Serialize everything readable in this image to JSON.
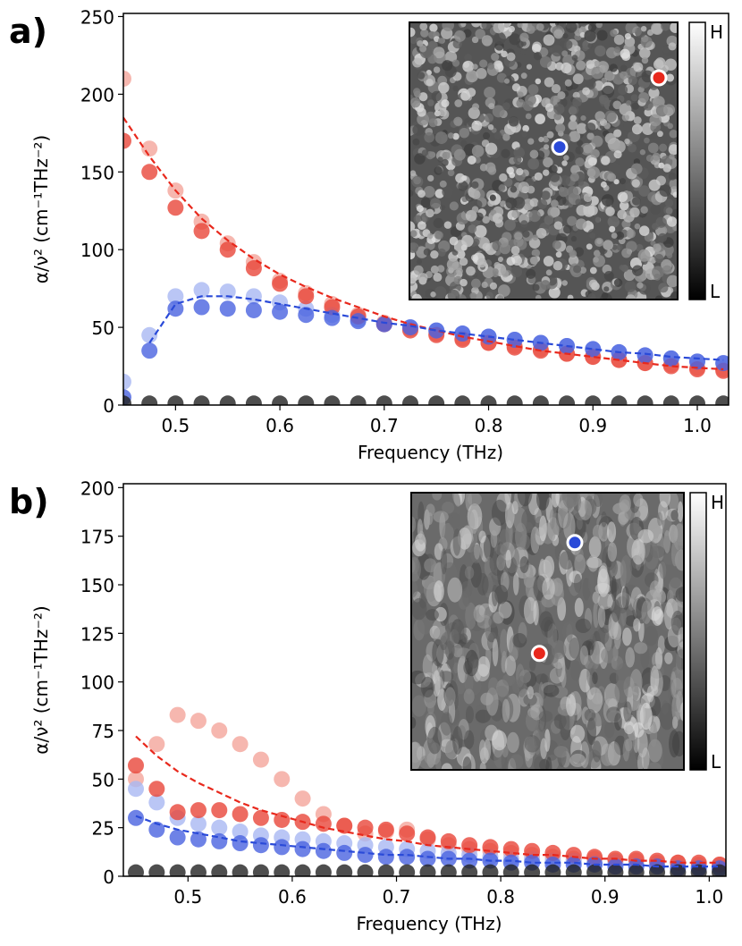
{
  "chart_data": [
    {
      "type": "line",
      "panel_label": "a)",
      "xlabel": "Frequency (THz)",
      "ylabel": "α/ν² (cm⁻¹THz⁻²)",
      "inset_colorbar_labels": [
        "H",
        "L"
      ],
      "xlim": [
        0.45,
        1.03
      ],
      "ylim": [
        0,
        252
      ],
      "xticks": [
        0.5,
        0.6,
        0.7,
        0.8,
        0.9,
        {
          "value": 1,
          "label": "1.0"
        }
      ],
      "yticks": [
        0,
        50,
        100,
        150,
        200,
        250
      ],
      "x": [
        0.45,
        0.475,
        0.5,
        0.525,
        0.55,
        0.575,
        0.6,
        0.625,
        0.65,
        0.675,
        0.7,
        0.725,
        0.75,
        0.775,
        0.8,
        0.825,
        0.85,
        0.875,
        0.9,
        0.925,
        0.95,
        0.975,
        1.0,
        1.025
      ],
      "series": [
        {
          "color": "#f4a59b",
          "style": "markers",
          "values": [
            210,
            165,
            138,
            118,
            104,
            92,
            80,
            72,
            65,
            58,
            53,
            49,
            46,
            43,
            40,
            38,
            36,
            33,
            31,
            29,
            27,
            26,
            24,
            23
          ]
        },
        {
          "color": "#a9b8f2",
          "style": "markers",
          "values": [
            15,
            45,
            70,
            74,
            73,
            70,
            66,
            62,
            58,
            55,
            52,
            50,
            48,
            46,
            44,
            42,
            40,
            38,
            36,
            34,
            32,
            30,
            28,
            27
          ]
        },
        {
          "color": "#e8463a",
          "style": "markers",
          "values": [
            170,
            150,
            127,
            112,
            100,
            88,
            78,
            70,
            63,
            57,
            52,
            48,
            45,
            42,
            40,
            37,
            35,
            33,
            31,
            29,
            27,
            25,
            23,
            22
          ]
        },
        {
          "color": "#4a63e0",
          "style": "markers",
          "values": [
            5,
            35,
            62,
            63,
            62,
            61,
            60,
            58,
            56,
            54,
            52,
            50,
            48,
            46,
            44,
            42,
            40,
            38,
            36,
            34,
            32,
            30,
            28,
            27
          ]
        },
        {
          "color": "#222222",
          "style": "markers",
          "values": [
            1,
            1,
            1,
            1,
            1,
            1,
            1,
            1,
            1,
            1,
            1,
            1,
            1,
            1,
            1,
            1,
            1,
            1,
            1,
            1,
            1,
            1,
            1,
            1
          ]
        },
        {
          "color": "#e8281c",
          "style": "dashed",
          "values": [
            185,
            160,
            138,
            120,
            106,
            94,
            84,
            76,
            69,
            63,
            57,
            52,
            48,
            44,
            41,
            38,
            35,
            33,
            31,
            29,
            27,
            25,
            24,
            23
          ]
        },
        {
          "color": "#2a4ad8",
          "style": "dashed",
          "values": [
            null,
            40,
            65,
            70,
            70,
            68,
            65,
            62,
            59,
            56,
            53,
            51,
            48,
            46,
            44,
            42,
            40,
            38,
            36,
            34,
            33,
            31,
            30,
            29
          ]
        }
      ]
    },
    {
      "type": "line",
      "panel_label": "b)",
      "xlabel": "Frequency (THz)",
      "ylabel": "α/ν² (cm⁻¹THz⁻²)",
      "inset_colorbar_labels": [
        "H",
        "L"
      ],
      "xlim": [
        0.438,
        1.016
      ],
      "ylim": [
        0,
        202
      ],
      "xticks": [
        0.5,
        0.6,
        0.7,
        0.8,
        0.9,
        {
          "value": 1,
          "label": "1.0"
        }
      ],
      "yticks": [
        0,
        25,
        50,
        75,
        100,
        125,
        150,
        175,
        200
      ],
      "x": [
        0.45,
        0.47,
        0.49,
        0.51,
        0.53,
        0.55,
        0.57,
        0.59,
        0.61,
        0.63,
        0.65,
        0.67,
        0.69,
        0.71,
        0.73,
        0.75,
        0.77,
        0.79,
        0.81,
        0.83,
        0.85,
        0.87,
        0.89,
        0.91,
        0.93,
        0.95,
        0.97,
        0.99,
        1.01
      ],
      "series": [
        {
          "color": "#f4a59b",
          "style": "markers",
          "values": [
            50,
            68,
            83,
            80,
            75,
            68,
            60,
            50,
            40,
            32,
            26,
            22,
            23,
            24,
            19,
            16,
            14,
            13,
            12,
            11,
            10,
            9,
            9,
            8,
            8,
            7,
            7,
            6,
            6
          ]
        },
        {
          "color": "#a9b8f2",
          "style": "markers",
          "values": [
            45,
            38,
            30,
            27,
            25,
            23,
            21,
            20,
            19,
            18,
            17,
            16,
            15,
            14,
            13,
            12,
            11,
            10,
            9,
            9,
            8,
            8,
            7,
            7,
            6,
            6,
            5,
            5,
            5
          ]
        },
        {
          "color": "#e8463a",
          "style": "markers",
          "values": [
            57,
            45,
            33,
            34,
            34,
            32,
            30,
            29,
            28,
            27,
            26,
            25,
            24,
            22,
            20,
            18,
            16,
            15,
            14,
            13,
            12,
            11,
            10,
            9,
            9,
            8,
            7,
            7,
            6
          ]
        },
        {
          "color": "#4a63e0",
          "style": "markers",
          "values": [
            30,
            24,
            20,
            19,
            18,
            17,
            16,
            15,
            14,
            13,
            12,
            11,
            10,
            10,
            9,
            9,
            8,
            8,
            7,
            7,
            6,
            6,
            6,
            5,
            5,
            5,
            4,
            4,
            4
          ]
        },
        {
          "color": "#222222",
          "style": "markers",
          "values": [
            2,
            2,
            2,
            2,
            2,
            2,
            2,
            2,
            2,
            2,
            2,
            2,
            2,
            2,
            2,
            2,
            2,
            2,
            2,
            2,
            2,
            2,
            2,
            2,
            2,
            2,
            2,
            2,
            2
          ]
        },
        {
          "color": "#e8281c",
          "style": "dashed",
          "values": [
            72,
            62,
            54,
            48,
            43,
            38,
            34,
            31,
            28,
            25,
            23,
            21,
            19,
            18,
            16,
            15,
            14,
            13,
            12,
            11,
            11,
            10,
            9,
            9,
            8,
            8,
            7,
            7,
            7
          ]
        },
        {
          "color": "#2a4ad8",
          "style": "dashed",
          "values": [
            31,
            27,
            24,
            22,
            20,
            18,
            17,
            16,
            15,
            14,
            13,
            12,
            11,
            11,
            10,
            9,
            9,
            8,
            8,
            7,
            7,
            7,
            6,
            6,
            6,
            5,
            5,
            5,
            5
          ]
        }
      ]
    }
  ]
}
